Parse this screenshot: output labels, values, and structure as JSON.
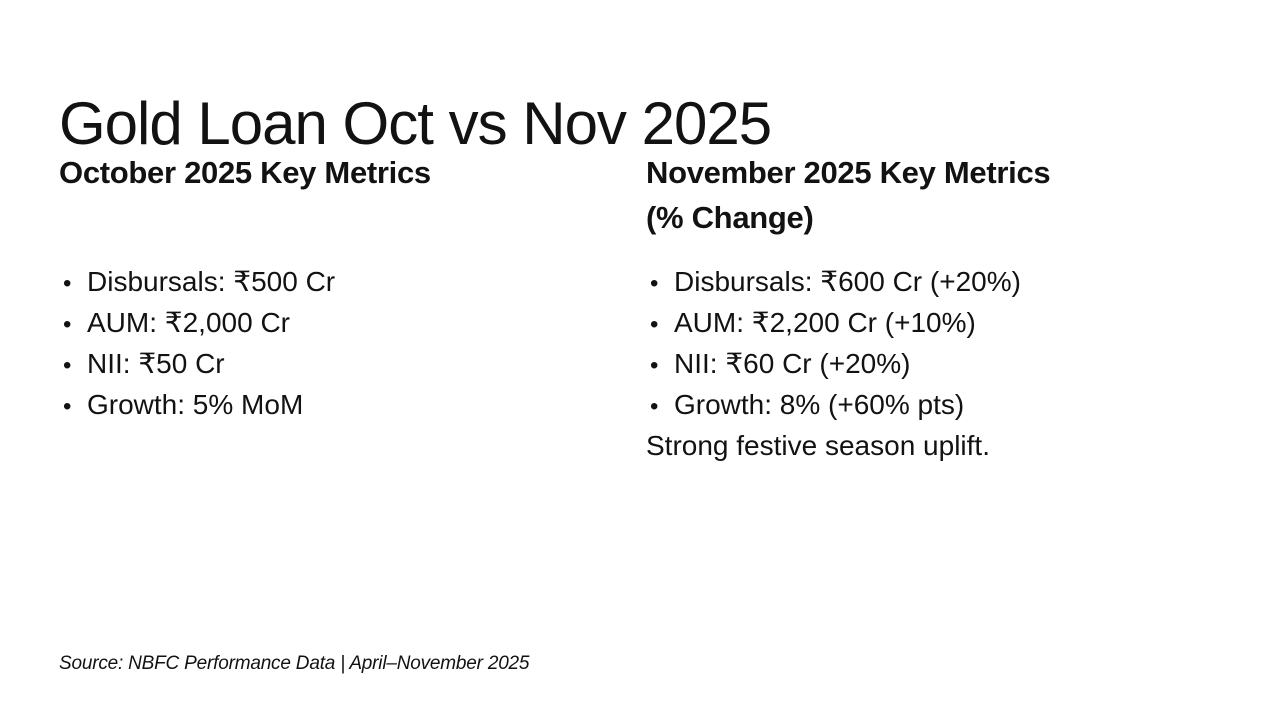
{
  "slide": {
    "title": "Gold Loan Oct vs Nov 2025",
    "bullet_glyph": "•",
    "columns": [
      {
        "heading_lines": [
          "October 2025 Key Metrics"
        ],
        "bullets": [
          "Disbursals: ₹500 Cr",
          "AUM: ₹2,000 Cr",
          "NII: ₹50 Cr",
          "Growth: 5% MoM"
        ]
      },
      {
        "heading_lines": [
          "November 2025 Key Metrics",
          "(% Change)"
        ],
        "bullets": [
          "Disbursals: ₹600 Cr (+20%)",
          "AUM: ₹2,200 Cr (+10%)",
          "NII: ₹60 Cr (+20%)",
          "Growth: 8% (+60% pts)"
        ],
        "note": "Strong festive season uplift."
      }
    ],
    "footer": "Source: NBFC Performance Data | April–November 2025"
  },
  "colors": {
    "background": "#ffffff",
    "text": "#121212"
  }
}
